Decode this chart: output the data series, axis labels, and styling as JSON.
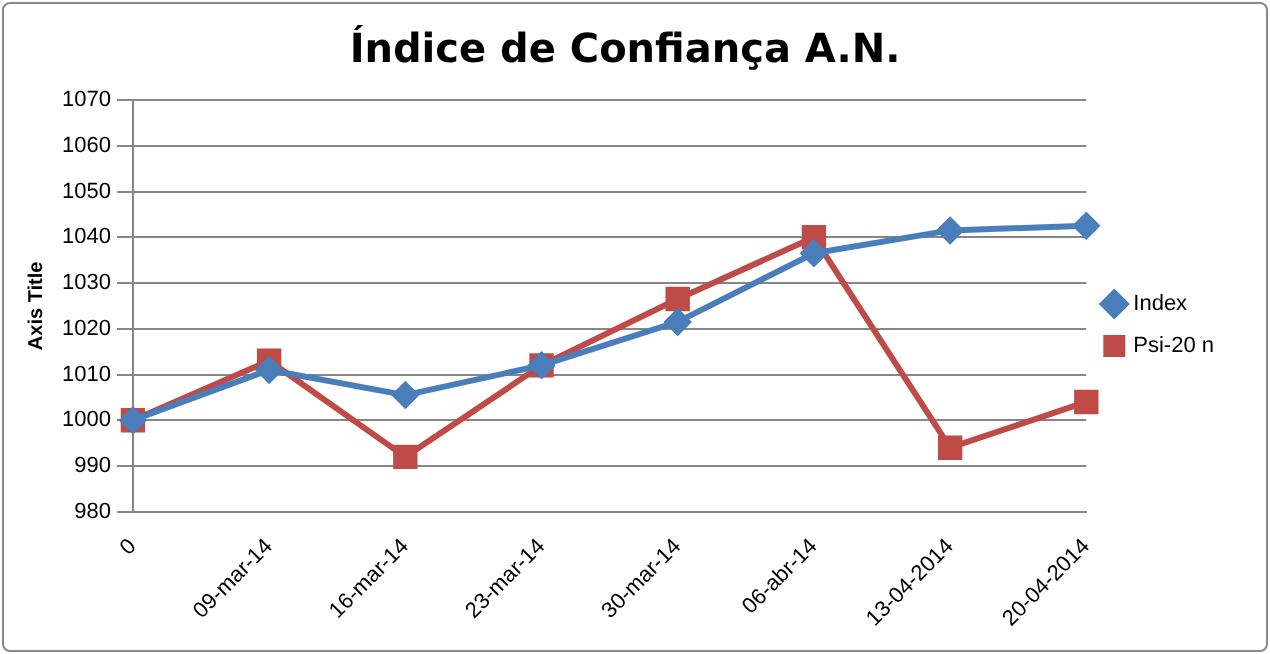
{
  "chart_data": {
    "type": "line",
    "title": "Índice de Confiança A.N.",
    "ylabel": "Axis Title",
    "categories": [
      "0",
      "09-mar-14",
      "16-mar-14",
      "23-mar-14",
      "30-mar-14",
      "06-abr-14",
      "13-04-2014",
      "20-04-2014"
    ],
    "series": [
      {
        "name": "Index",
        "color": "#4a7ebb",
        "marker": "diamond",
        "values": [
          1000,
          1011,
          1005.5,
          1012,
          1021.5,
          1036.5,
          1041.5,
          1042.5
        ]
      },
      {
        "name": "Psi-20 n",
        "color": "#be4b48",
        "marker": "square",
        "values": [
          1000,
          1013,
          992,
          1012,
          1026.5,
          1040,
          994,
          1004
        ]
      }
    ],
    "ylim": [
      980,
      1070
    ],
    "yticks": [
      980,
      990,
      1000,
      1010,
      1020,
      1030,
      1040,
      1050,
      1060,
      1070
    ],
    "grid": "y",
    "legend": "right",
    "line_style": "solid"
  }
}
